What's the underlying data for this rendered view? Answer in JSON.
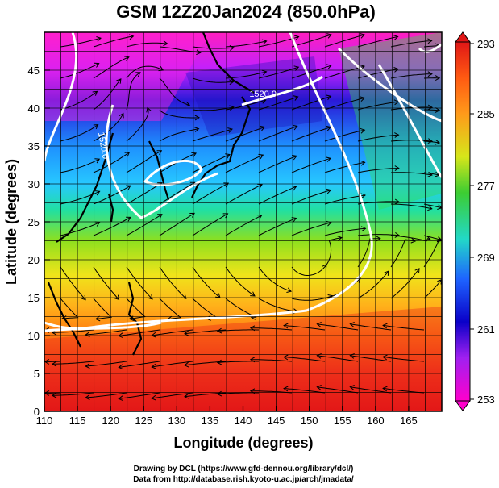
{
  "title": "GSM 12Z20Jan2024 (850.0hPa)",
  "x_axis": {
    "label": "Longitude (degrees)",
    "ticks": [
      "110",
      "115",
      "120",
      "125",
      "130",
      "135",
      "140",
      "145",
      "150",
      "155",
      "160",
      "165"
    ],
    "range": [
      110,
      170
    ]
  },
  "y_axis": {
    "label": "Latitude  (degrees)",
    "ticks": [
      "0",
      "5",
      "10",
      "15",
      "20",
      "25",
      "30",
      "35",
      "40",
      "45"
    ],
    "range": [
      0,
      50
    ]
  },
  "colorbar": {
    "labels": [
      "293",
      "285",
      "277",
      "269",
      "261",
      "253"
    ],
    "values": [
      293,
      285,
      277,
      269,
      261,
      253
    ],
    "colors": [
      "#d81e1e",
      "#ff8c00",
      "#e6e600",
      "#32cd32",
      "#00c8c8",
      "#1e64ff",
      "#0000b4",
      "#ff00ff"
    ]
  },
  "contour_labels": [
    {
      "text": "1520.0",
      "lon": 143,
      "lat": 41.5
    },
    {
      "text": "1520.0",
      "lon": 118.5,
      "lat": 35
    }
  ],
  "credits": {
    "line1": "Drawing by DCL (https://www.gfd-dennou.org/library/dcl/)",
    "line2": "Data from http://database.rish.kyoto-u.ac.jp/arch/jmadata/"
  },
  "map": {
    "type": "meteorological field",
    "field": "temperature (shaded) with streamlines and height contours",
    "lon_range": [
      110,
      170
    ],
    "lat_range": [
      0,
      50
    ]
  }
}
